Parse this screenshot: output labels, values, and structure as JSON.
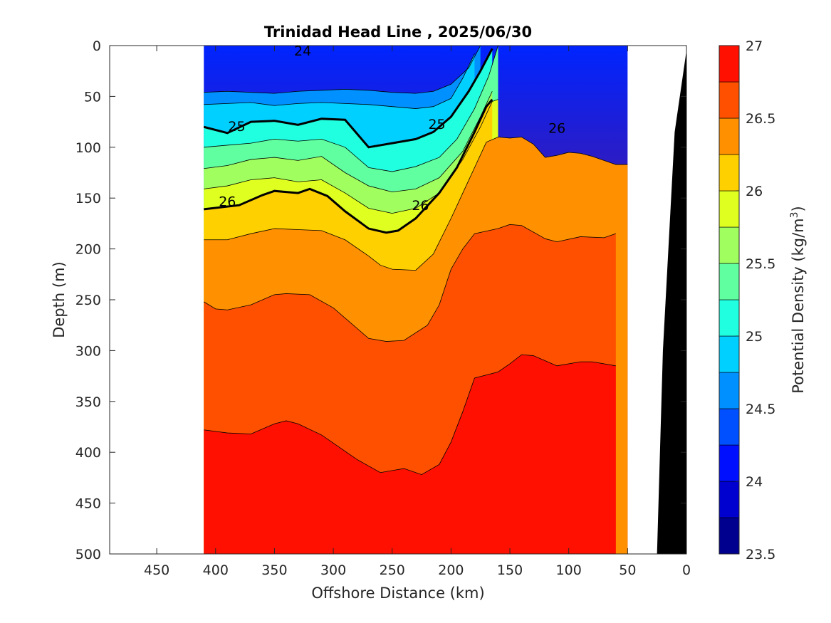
{
  "chart_data": {
    "type": "contour",
    "title": "Trinidad Head Line , 2025/06/30",
    "xlabel": "Offshore Distance (km)",
    "ylabel": "Depth (m)",
    "colorbar_label_prefix": "Potential Density (kg/m",
    "colorbar_label_sup": "3",
    "colorbar_label_suffix": ")",
    "xlim": [
      490,
      0
    ],
    "ylim": [
      0,
      500
    ],
    "x_ticks": [
      450,
      400,
      350,
      300,
      250,
      200,
      150,
      100,
      50,
      0
    ],
    "x_tick_labels": [
      "450",
      "400",
      "350",
      "300",
      "250",
      "200",
      "150",
      "100",
      "50",
      "0"
    ],
    "y_ticks": [
      0,
      50,
      100,
      150,
      200,
      250,
      300,
      350,
      400,
      450,
      500
    ],
    "y_tick_labels": [
      "0",
      "50",
      "100",
      "150",
      "200",
      "250",
      "300",
      "350",
      "400",
      "450",
      "500"
    ],
    "colorbar_range": [
      23.5,
      27
    ],
    "colorbar_ticks": [
      23.5,
      24,
      24.5,
      25,
      25.5,
      26,
      26.5,
      27
    ],
    "colorbar_tick_labels": [
      "23.5",
      "24",
      "24.5",
      "25",
      "25.5",
      "26",
      "26.5",
      "27"
    ],
    "levels": [
      23.75,
      24,
      24.25,
      24.5,
      24.75,
      25,
      25.25,
      25.5,
      25.75,
      26,
      26.25,
      26.5,
      26.75
    ],
    "colormap": [
      "#00008f",
      "#0000cf",
      "#0010ff",
      "#0050ff",
      "#0090ff",
      "#00d0ff",
      "#20ffdf",
      "#60ff9f",
      "#a0ff5f",
      "#dfff20",
      "#ffd000",
      "#ff9000",
      "#ff5000",
      "#ff1000",
      "#bf0000"
    ],
    "section_range_km": [
      410,
      50
    ],
    "section_color_top": "#0024ff",
    "section_color_bottom": "#bf0000",
    "isopycnals": [
      {
        "level": 24.5,
        "x": [
          410,
          390,
          370,
          350,
          330,
          310,
          290,
          270,
          250,
          230,
          215,
          200,
          185,
          175
        ],
        "y": [
          46,
          45,
          46,
          47,
          45,
          44,
          43,
          44,
          46,
          47,
          45,
          38,
          22,
          0
        ]
      },
      {
        "level": 24.75,
        "x": [
          410,
          390,
          370,
          350,
          330,
          310,
          290,
          270,
          250,
          230,
          215,
          200,
          190,
          180
        ],
        "y": [
          58,
          57,
          56,
          59,
          57,
          56,
          57,
          58,
          60,
          62,
          60,
          52,
          32,
          8
        ]
      },
      {
        "level": 25.0,
        "x": [
          410,
          390,
          370,
          350,
          330,
          310,
          290,
          270,
          250,
          230,
          215,
          200,
          185,
          175,
          165
        ],
        "y": [
          80,
          86,
          75,
          74,
          78,
          72,
          73,
          100,
          96,
          92,
          85,
          70,
          45,
          25,
          3
        ]
      },
      {
        "level": 25.25,
        "x": [
          410,
          390,
          370,
          350,
          330,
          310,
          290,
          270,
          250,
          230,
          210,
          195,
          180,
          168,
          160
        ],
        "y": [
          100,
          98,
          96,
          92,
          94,
          92,
          100,
          120,
          124,
          119,
          110,
          92,
          62,
          30,
          0
        ]
      },
      {
        "level": 25.5,
        "x": [
          410,
          390,
          370,
          350,
          330,
          310,
          290,
          270,
          250,
          230,
          210,
          190,
          175,
          165
        ],
        "y": [
          121,
          118,
          112,
          110,
          113,
          109,
          125,
          138,
          144,
          141,
          130,
          104,
          70,
          45
        ]
      },
      {
        "level": 25.75,
        "x": [
          410,
          390,
          370,
          350,
          330,
          310,
          290,
          270,
          250,
          230,
          210,
          190,
          175,
          165,
          160
        ],
        "y": [
          141,
          138,
          132,
          130,
          134,
          132,
          145,
          160,
          165,
          160,
          145,
          112,
          80,
          55,
          53
        ]
      },
      {
        "level": 26.0,
        "x": [
          410,
          380,
          360,
          350,
          330,
          320,
          305,
          290,
          270,
          255,
          245,
          230,
          210,
          195,
          180,
          170,
          165
        ],
        "y": [
          161,
          157,
          147,
          143,
          145,
          141,
          148,
          163,
          180,
          184,
          182,
          170,
          145,
          120,
          85,
          60,
          53
        ]
      },
      {
        "level": 26.25,
        "x": [
          410,
          390,
          370,
          350,
          330,
          310,
          290,
          270,
          260,
          250,
          230,
          215,
          200,
          190,
          180,
          170,
          160,
          150,
          140,
          130,
          120,
          110,
          100,
          90,
          80,
          60,
          50
        ],
        "y": [
          191,
          191,
          185,
          180,
          181,
          182,
          191,
          207,
          216,
          220,
          221,
          205,
          170,
          145,
          120,
          95,
          90,
          91,
          90,
          97,
          110,
          108,
          105,
          106,
          109,
          117,
          117
        ]
      },
      {
        "level": 26.5,
        "x": [
          410,
          400,
          390,
          370,
          350,
          340,
          320,
          300,
          270,
          255,
          240,
          220,
          210,
          200,
          190,
          180,
          160,
          150,
          140,
          120,
          110,
          90,
          70,
          60
        ],
        "y": [
          252,
          259,
          260,
          255,
          245,
          244,
          245,
          258,
          288,
          291,
          290,
          275,
          255,
          220,
          200,
          185,
          180,
          176,
          177,
          190,
          193,
          188,
          189,
          185
        ]
      },
      {
        "level": 26.75,
        "x": [
          410,
          390,
          370,
          350,
          340,
          330,
          310,
          300,
          280,
          260,
          250,
          240,
          225,
          210,
          200,
          190,
          180,
          160,
          150,
          140,
          130,
          110,
          90,
          80,
          60
        ],
        "y": [
          378,
          381,
          382,
          372,
          369,
          372,
          383,
          391,
          407,
          420,
          418,
          416,
          422,
          412,
          390,
          360,
          327,
          321,
          313,
          304,
          305,
          315,
          311,
          311,
          315
        ]
      }
    ],
    "contour_labels": [
      {
        "text": "24",
        "x": 326,
        "y": 5
      },
      {
        "text": "25",
        "x": 382,
        "y": 79
      },
      {
        "text": "25",
        "x": 212,
        "y": 77
      },
      {
        "text": "26",
        "x": 390,
        "y": 153
      },
      {
        "text": "26",
        "x": 226,
        "y": 157
      },
      {
        "text": "26",
        "x": 110,
        "y": 81
      }
    ],
    "bathymetry": {
      "x": [
        0,
        0,
        10,
        20,
        25
      ],
      "y": [
        500,
        5,
        85,
        300,
        500
      ]
    }
  }
}
